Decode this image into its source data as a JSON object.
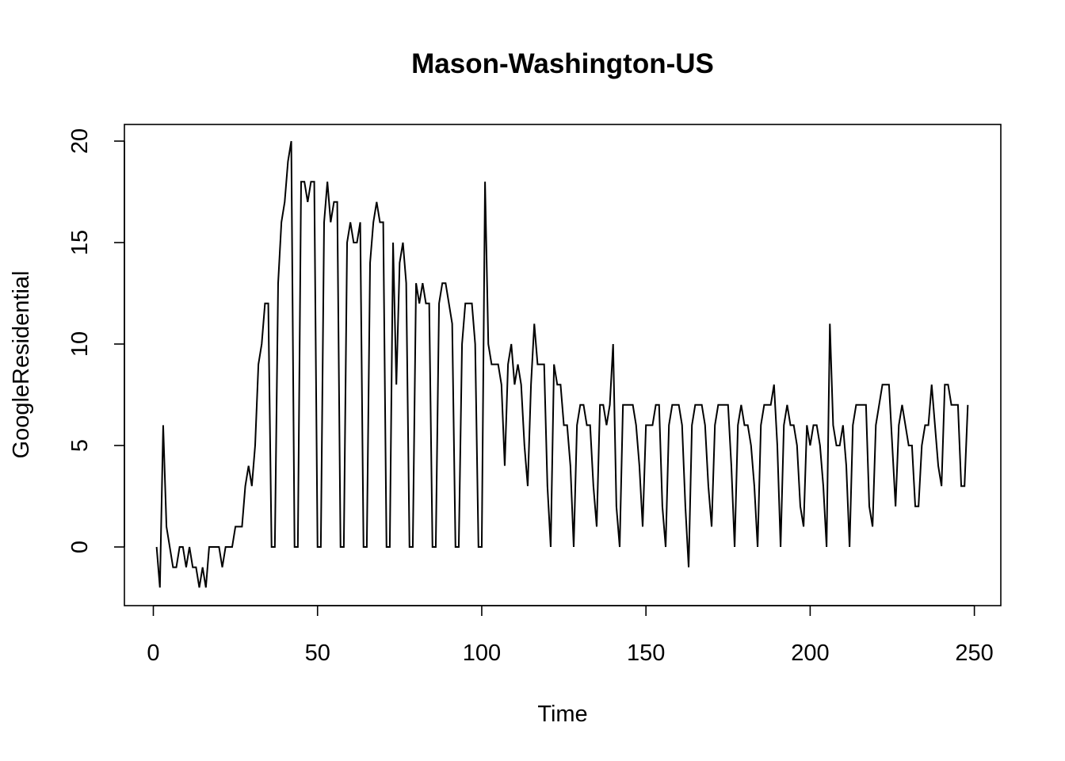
{
  "chart_data": {
    "type": "line",
    "title": "Mason-Washington-US",
    "xlabel": "Time",
    "ylabel": "GoogleResidential",
    "xlim": [
      1,
      248
    ],
    "ylim": [
      -2,
      20
    ],
    "x_ticks": [
      0,
      50,
      100,
      150,
      200,
      250
    ],
    "y_ticks": [
      0,
      5,
      10,
      15,
      20
    ],
    "x_start": 1,
    "grid": false,
    "legend": "none",
    "line_color": "#000000",
    "series": [
      {
        "values": [
          0,
          -2,
          6,
          1,
          0,
          -1,
          -1,
          0,
          0,
          -1,
          0,
          -1,
          -1,
          -2,
          -1,
          -2,
          0,
          0,
          0,
          0,
          -1,
          0,
          0,
          0,
          1,
          1,
          1,
          3,
          4,
          3,
          5,
          9,
          10,
          12,
          12,
          0,
          0,
          13,
          16,
          17,
          19,
          20,
          0,
          0,
          18,
          18,
          17,
          18,
          18,
          0,
          0,
          16,
          18,
          16,
          17,
          17,
          0,
          0,
          15,
          16,
          15,
          15,
          16,
          0,
          0,
          14,
          16,
          17,
          16,
          16,
          0,
          0,
          15,
          8,
          14,
          15,
          13,
          0,
          0,
          13,
          12,
          13,
          12,
          12,
          0,
          0,
          12,
          13,
          13,
          12,
          11,
          0,
          0,
          10,
          12,
          12,
          12,
          10,
          0,
          0,
          18,
          10,
          9,
          9,
          9,
          8,
          4,
          9,
          10,
          8,
          9,
          8,
          5,
          3,
          8,
          11,
          9,
          9,
          9,
          3,
          0,
          9,
          8,
          8,
          6,
          6,
          4,
          0,
          6,
          7,
          7,
          6,
          6,
          3,
          1,
          7,
          7,
          6,
          7,
          10,
          2,
          0,
          7,
          7,
          7,
          7,
          6,
          4,
          1,
          6,
          6,
          6,
          7,
          7,
          2,
          0,
          6,
          7,
          7,
          7,
          6,
          2,
          -1,
          6,
          7,
          7,
          7,
          6,
          3,
          1,
          6,
          7,
          7,
          7,
          7,
          4,
          0,
          6,
          7,
          6,
          6,
          5,
          3,
          0,
          6,
          7,
          7,
          7,
          8,
          5,
          0,
          6,
          7,
          6,
          6,
          5,
          2,
          1,
          6,
          5,
          6,
          6,
          5,
          3,
          0,
          11,
          6,
          5,
          5,
          6,
          4,
          0,
          6,
          7,
          7,
          7,
          7,
          2,
          1,
          6,
          7,
          8,
          8,
          8,
          5,
          2,
          6,
          7,
          6,
          5,
          5,
          2,
          2,
          5,
          6,
          6,
          8,
          6,
          4,
          3,
          8,
          8,
          7,
          7,
          7,
          3,
          3,
          7
        ]
      }
    ]
  }
}
